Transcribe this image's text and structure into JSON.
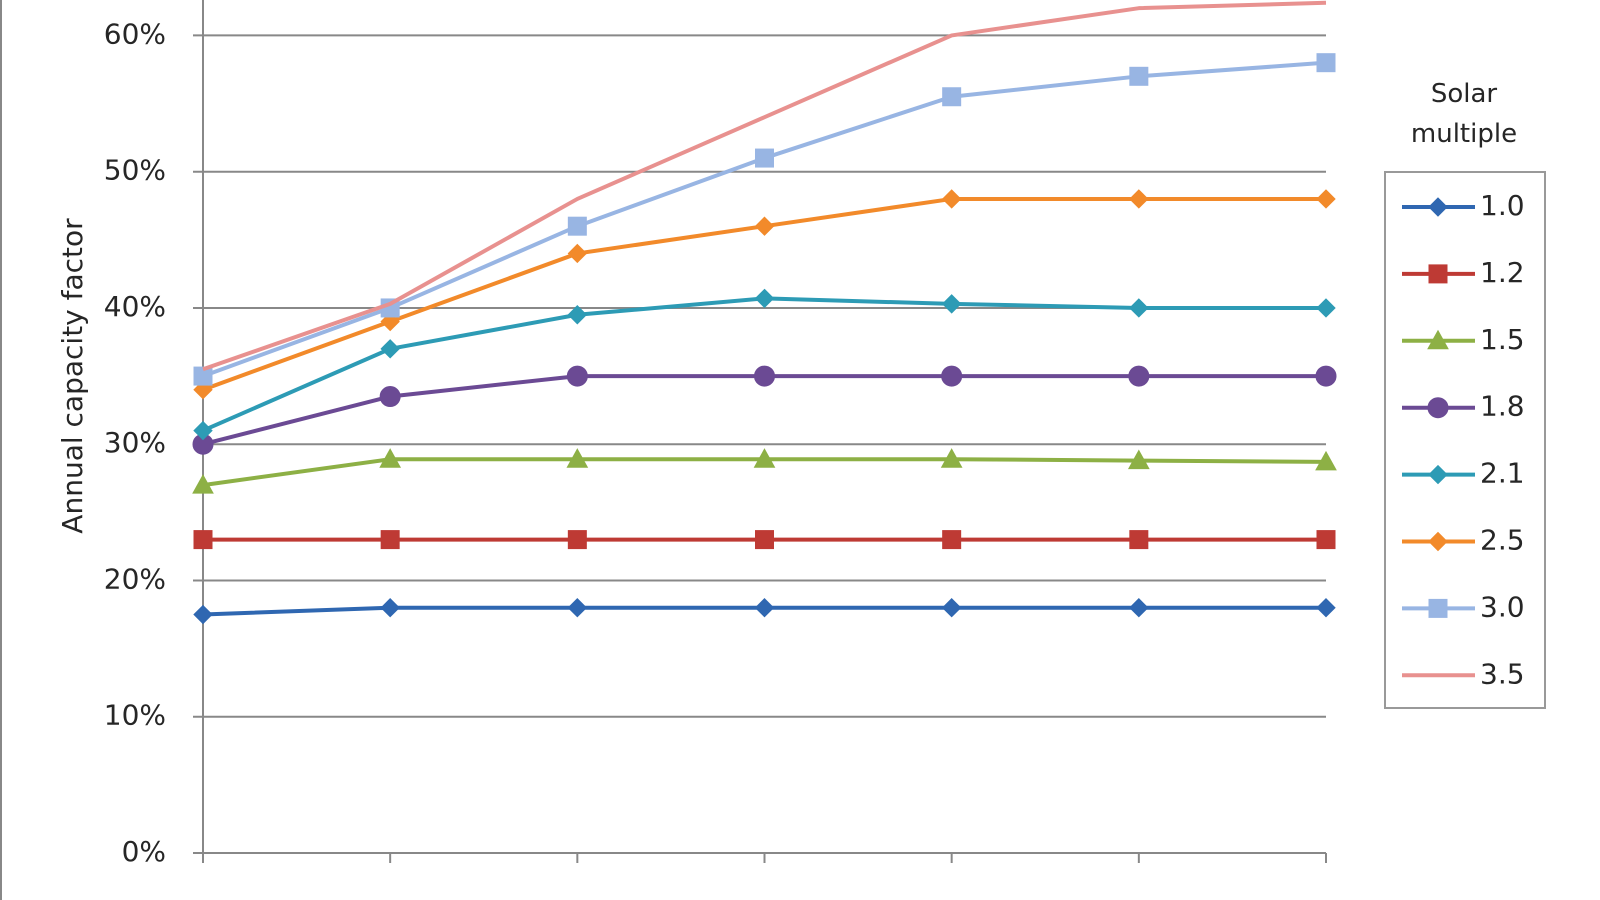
{
  "chart_data": {
    "type": "line",
    "y_label": "Annual capacity factor",
    "legend_title": "Solar multiple",
    "legend_position": "right",
    "grid": true,
    "categories": [
      null,
      null,
      null,
      null,
      null,
      null,
      null
    ],
    "ylim": [
      0,
      62.6
    ],
    "yticks": [
      {
        "value": 0,
        "label": "0%"
      },
      {
        "value": 10,
        "label": "10%"
      },
      {
        "value": 20,
        "label": "20%"
      },
      {
        "value": 30,
        "label": "30%"
      },
      {
        "value": 40,
        "label": "40%"
      },
      {
        "value": 50,
        "label": "50%"
      },
      {
        "value": 60,
        "label": "60%"
      }
    ],
    "series": [
      {
        "name": "1.0",
        "color": "#2f67b1",
        "marker": "diamond",
        "values": [
          17.5,
          18,
          18,
          18,
          18,
          18,
          18
        ]
      },
      {
        "name": "1.2",
        "color": "#be3a34",
        "marker": "square",
        "values": [
          23,
          23,
          23,
          23,
          23,
          23,
          23
        ]
      },
      {
        "name": "1.5",
        "color": "#8db045",
        "marker": "triangle",
        "values": [
          27,
          28.9,
          28.9,
          28.9,
          28.9,
          28.8,
          28.7
        ]
      },
      {
        "name": "1.8",
        "color": "#6b4a94",
        "marker": "circle",
        "values": [
          30,
          33.5,
          35,
          35,
          35,
          35,
          35
        ]
      },
      {
        "name": "2.1",
        "color": "#2d9bb5",
        "marker": "diamond",
        "values": [
          31,
          37,
          39.5,
          40.7,
          40.3,
          40,
          40
        ]
      },
      {
        "name": "2.5",
        "color": "#f28a2a",
        "marker": "diamond",
        "values": [
          34,
          39,
          44,
          46,
          48,
          48,
          48
        ]
      },
      {
        "name": "3.0",
        "color": "#98b5e3",
        "marker": "square",
        "values": [
          35,
          40,
          46,
          51,
          55.5,
          57,
          58
        ]
      },
      {
        "name": "3.5",
        "color": "#e8918f",
        "marker": "none",
        "values": [
          35.5,
          40.3,
          48,
          54,
          60,
          62,
          62.4
        ]
      }
    ]
  }
}
